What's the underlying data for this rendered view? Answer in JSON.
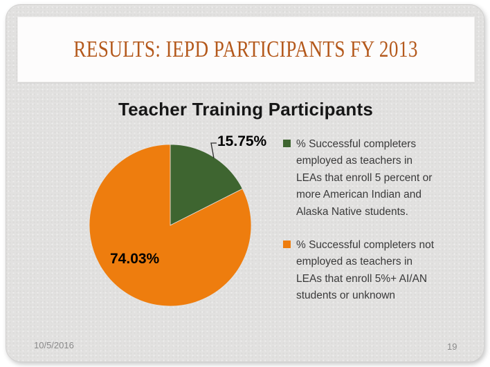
{
  "slide": {
    "title": "RESULTS: IEPD PARTICIPANTS FY 2013",
    "date": "10/5/2016",
    "page_number": "19"
  },
  "chart_data": {
    "type": "pie",
    "title": "Teacher Training Participants",
    "legend_position": "right",
    "start_angle_deg": 0,
    "slices": [
      {
        "label": "% Successful completers employed as teachers in LEAs that enroll 5 percent or more American Indian and Alaska Native students.",
        "label_lines": [
          "% Successful completers",
          "employed as teachers in",
          "LEAs that enroll 5 percent or",
          "more American Indian and",
          "Alaska Native students."
        ],
        "value": 15.75,
        "data_label": "15.75%",
        "color": "#3e6530"
      },
      {
        "label": "% Successful completers not employed as teachers in LEAs that enroll 5%+ AI/AN students or unknown",
        "label_lines": [
          "% Successful completers not",
          "employed as teachers in",
          "LEAs that enroll 5%+ AI/AN",
          "students or unknown"
        ],
        "value": 74.03,
        "data_label": "74.03%",
        "color": "#ee7d0e"
      }
    ]
  },
  "colors": {
    "page_background": "#ffffff",
    "slide_background": "#e2e1e0",
    "title_box_background": "#fdfcfc",
    "title_text": "#b4591c",
    "body_text": "#3a3a3a",
    "data_label_text": "#000000",
    "footer_text": "#8a8a8a",
    "leader_line": "#2b2b2b"
  }
}
